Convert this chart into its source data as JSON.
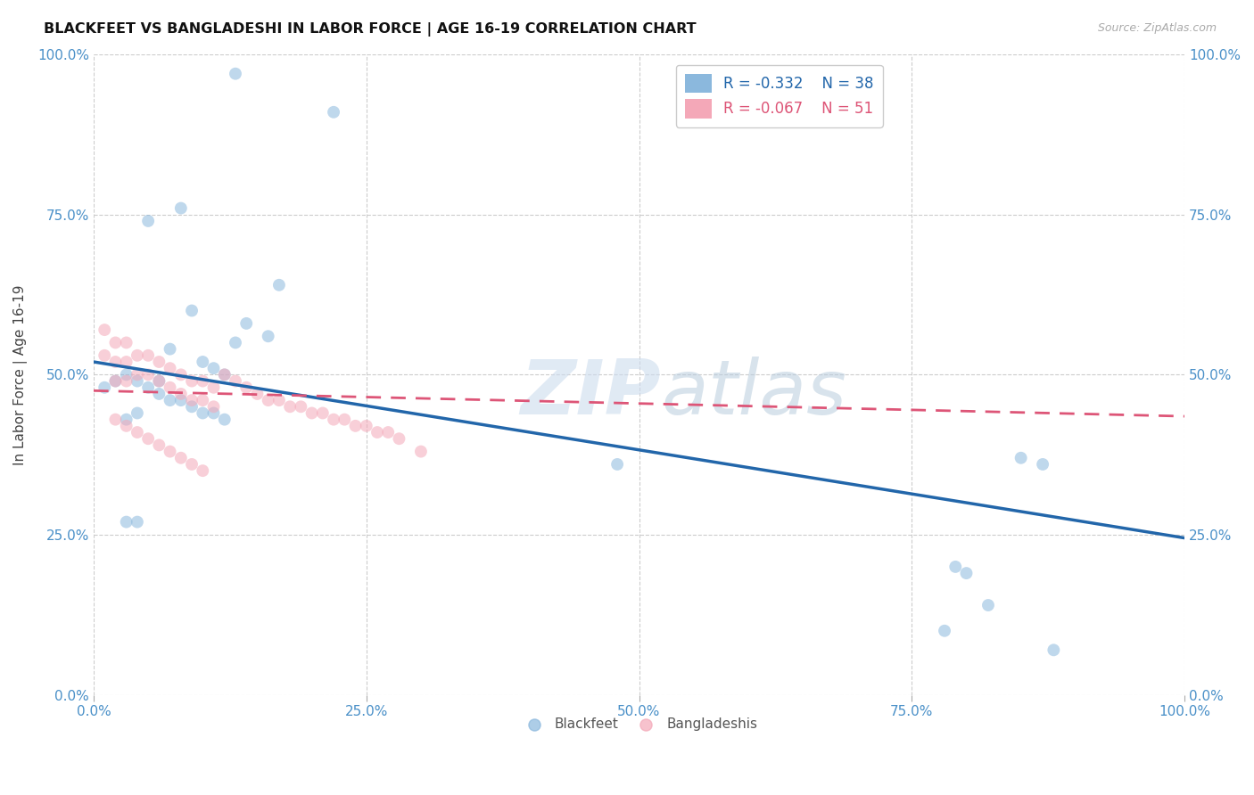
{
  "title": "BLACKFEET VS BANGLADESHI IN LABOR FORCE | AGE 16-19 CORRELATION CHART",
  "source": "Source: ZipAtlas.com",
  "ylabel": "In Labor Force | Age 16-19",
  "xlim": [
    0.0,
    1.0
  ],
  "ylim": [
    0.0,
    1.0
  ],
  "xticks": [
    0.0,
    0.25,
    0.5,
    0.75,
    1.0
  ],
  "yticks": [
    0.0,
    0.25,
    0.5,
    0.75,
    1.0
  ],
  "tick_labels": [
    "0.0%",
    "25.0%",
    "50.0%",
    "75.0%",
    "100.0%"
  ],
  "background_color": "#ffffff",
  "grid_color": "#cccccc",
  "blackfeet_color": "#8bb8dd",
  "bangladeshi_color": "#f4a8b8",
  "blackfeet_line_color": "#2266aa",
  "bangladeshi_line_color": "#dd5577",
  "legend_r1": "-0.332",
  "legend_n1": "38",
  "legend_r2": "-0.067",
  "legend_n2": "51",
  "blackfeet_x": [
    0.13,
    0.22,
    0.08,
    0.17,
    0.05,
    0.09,
    0.02,
    0.03,
    0.04,
    0.06,
    0.01,
    0.14,
    0.16,
    0.13,
    0.07,
    0.1,
    0.11,
    0.12,
    0.03,
    0.04,
    0.05,
    0.06,
    0.07,
    0.08,
    0.09,
    0.1,
    0.11,
    0.12,
    0.03,
    0.04,
    0.48,
    0.85,
    0.87,
    0.79,
    0.8,
    0.82,
    0.78,
    0.88
  ],
  "blackfeet_y": [
    0.97,
    0.91,
    0.76,
    0.64,
    0.74,
    0.6,
    0.49,
    0.5,
    0.49,
    0.49,
    0.48,
    0.58,
    0.56,
    0.55,
    0.54,
    0.52,
    0.51,
    0.5,
    0.43,
    0.44,
    0.48,
    0.47,
    0.46,
    0.46,
    0.45,
    0.44,
    0.44,
    0.43,
    0.27,
    0.27,
    0.36,
    0.37,
    0.36,
    0.2,
    0.19,
    0.14,
    0.1,
    0.07
  ],
  "bangladeshi_x": [
    0.01,
    0.01,
    0.02,
    0.02,
    0.02,
    0.03,
    0.03,
    0.03,
    0.04,
    0.04,
    0.05,
    0.05,
    0.06,
    0.06,
    0.07,
    0.07,
    0.08,
    0.08,
    0.09,
    0.09,
    0.1,
    0.1,
    0.11,
    0.11,
    0.12,
    0.13,
    0.14,
    0.15,
    0.16,
    0.17,
    0.18,
    0.19,
    0.2,
    0.21,
    0.22,
    0.23,
    0.24,
    0.25,
    0.26,
    0.27,
    0.28,
    0.3,
    0.02,
    0.03,
    0.04,
    0.05,
    0.06,
    0.07,
    0.08,
    0.09,
    0.1
  ],
  "bangladeshi_y": [
    0.57,
    0.53,
    0.55,
    0.52,
    0.49,
    0.55,
    0.52,
    0.49,
    0.53,
    0.5,
    0.53,
    0.5,
    0.52,
    0.49,
    0.51,
    0.48,
    0.5,
    0.47,
    0.49,
    0.46,
    0.49,
    0.46,
    0.48,
    0.45,
    0.5,
    0.49,
    0.48,
    0.47,
    0.46,
    0.46,
    0.45,
    0.45,
    0.44,
    0.44,
    0.43,
    0.43,
    0.42,
    0.42,
    0.41,
    0.41,
    0.4,
    0.38,
    0.43,
    0.42,
    0.41,
    0.4,
    0.39,
    0.38,
    0.37,
    0.36,
    0.35
  ],
  "marker_size": 100,
  "alpha": 0.55,
  "bf_line_x0": 0.0,
  "bf_line_y0": 0.52,
  "bf_line_x1": 1.0,
  "bf_line_y1": 0.245,
  "bd_line_x0": 0.0,
  "bd_line_y0": 0.475,
  "bd_line_x1": 1.0,
  "bd_line_y1": 0.435
}
